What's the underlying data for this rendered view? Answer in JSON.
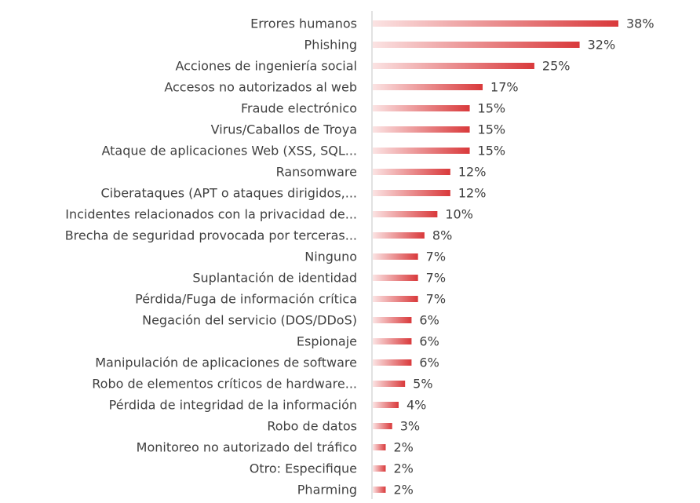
{
  "chart_data": {
    "type": "bar",
    "orientation": "horizontal",
    "categories": [
      "Errores humanos",
      "Phishing",
      "Acciones de ingeniería social",
      "Accesos no autorizados al web",
      "Fraude electrónico",
      "Virus/Caballos de Troya",
      "Ataque de aplicaciones Web (XSS, SQL...",
      "Ransomware",
      "Ciberataques (APT o ataques dirigidos,...",
      "Incidentes relacionados con la privacidad de...",
      "Brecha de seguridad provocada por terceras...",
      "Ninguno",
      "Suplantación de identidad",
      "Pérdida/Fuga de información crítica",
      "Negación del servicio (DOS/DDoS)",
      "Espionaje",
      "Manipulación de aplicaciones de software",
      "Robo de elementos críticos de hardware...",
      "Pérdida de integridad de la información",
      "Robo de datos",
      "Monitoreo no autorizado del tráfico",
      "Otro: Especifique",
      "Pharming"
    ],
    "values": [
      38,
      32,
      25,
      17,
      15,
      15,
      15,
      12,
      12,
      10,
      8,
      7,
      7,
      7,
      6,
      6,
      6,
      5,
      4,
      3,
      2,
      2,
      2
    ],
    "value_labels": [
      "38%",
      "32%",
      "25%",
      "17%",
      "15%",
      "15%",
      "15%",
      "12%",
      "12%",
      "10%",
      "8%",
      "7%",
      "7%",
      "7%",
      "6%",
      "6%",
      "6%",
      "5%",
      "4%",
      "3%",
      "2%",
      "2%",
      "2%"
    ],
    "unit": "%",
    "xlim": [
      0,
      40
    ],
    "grid": false,
    "legend": "none",
    "colors": {
      "bar_start": "#fbe3e3",
      "bar_end": "#d9393b",
      "axis": "#d9d9d9",
      "text": "#404040"
    }
  }
}
